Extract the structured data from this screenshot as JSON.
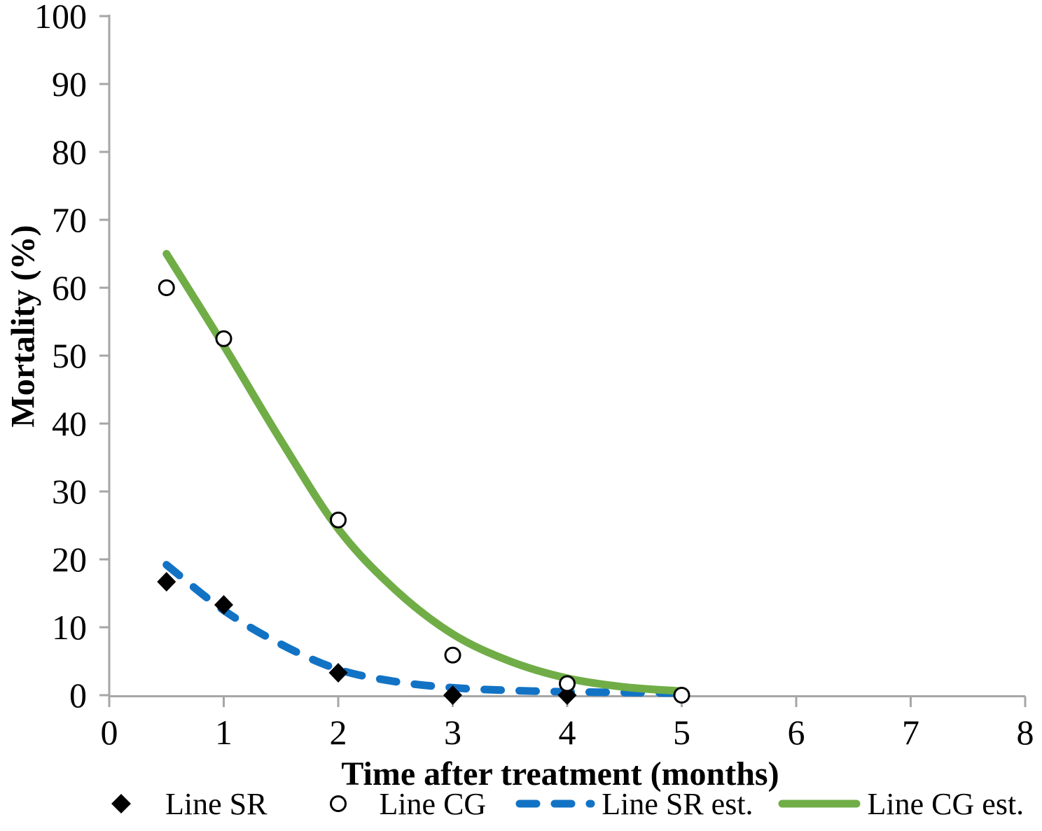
{
  "chart_data": {
    "type": "scatter",
    "title": "",
    "xlabel": "Time after treatment (months)",
    "ylabel": "Mortality (%)",
    "xlim": [
      0,
      8
    ],
    "ylim": [
      0,
      100
    ],
    "x_ticks": [
      0,
      1,
      2,
      3,
      4,
      5,
      6,
      7,
      8
    ],
    "y_ticks": [
      0,
      10,
      20,
      30,
      40,
      50,
      60,
      70,
      80,
      90,
      100
    ],
    "grid": false,
    "background_color": "#ffffff",
    "axis_color": "#a6a6a6",
    "text_color": "#000000",
    "legend_position": "bottom",
    "series": [
      {
        "name": "Line SR",
        "type": "scatter",
        "marker": "filled-diamond",
        "color": "#000000",
        "x": [
          0.5,
          1,
          2,
          3,
          4
        ],
        "y": [
          16.7,
          13.3,
          3.3,
          0,
          0
        ]
      },
      {
        "name": "Line CG",
        "type": "scatter",
        "marker": "open-circle",
        "color": "#000000",
        "fill": "#ffffff",
        "x": [
          0.5,
          1,
          2,
          3,
          4,
          5
        ],
        "y": [
          60,
          52.5,
          25.8,
          5.9,
          1.7,
          0
        ]
      },
      {
        "name": "Line SR est.",
        "type": "line",
        "style": "dashed",
        "color": "#1273c5",
        "x": [
          0.5,
          1,
          1.5,
          2,
          2.5,
          3,
          3.5,
          4,
          4.5,
          5
        ],
        "y": [
          19.2,
          12.5,
          7.5,
          3.8,
          2.0,
          1.1,
          0.7,
          0.5,
          0.4,
          0.3
        ]
      },
      {
        "name": "Line CG est.",
        "type": "line",
        "style": "solid",
        "color": "#70ad47",
        "x": [
          0.5,
          1,
          1.5,
          2,
          2.5,
          3,
          3.5,
          4,
          4.5,
          5
        ],
        "y": [
          65,
          51.5,
          37.5,
          24.5,
          15.5,
          9,
          5,
          2.5,
          1.2,
          0.6
        ]
      }
    ]
  }
}
